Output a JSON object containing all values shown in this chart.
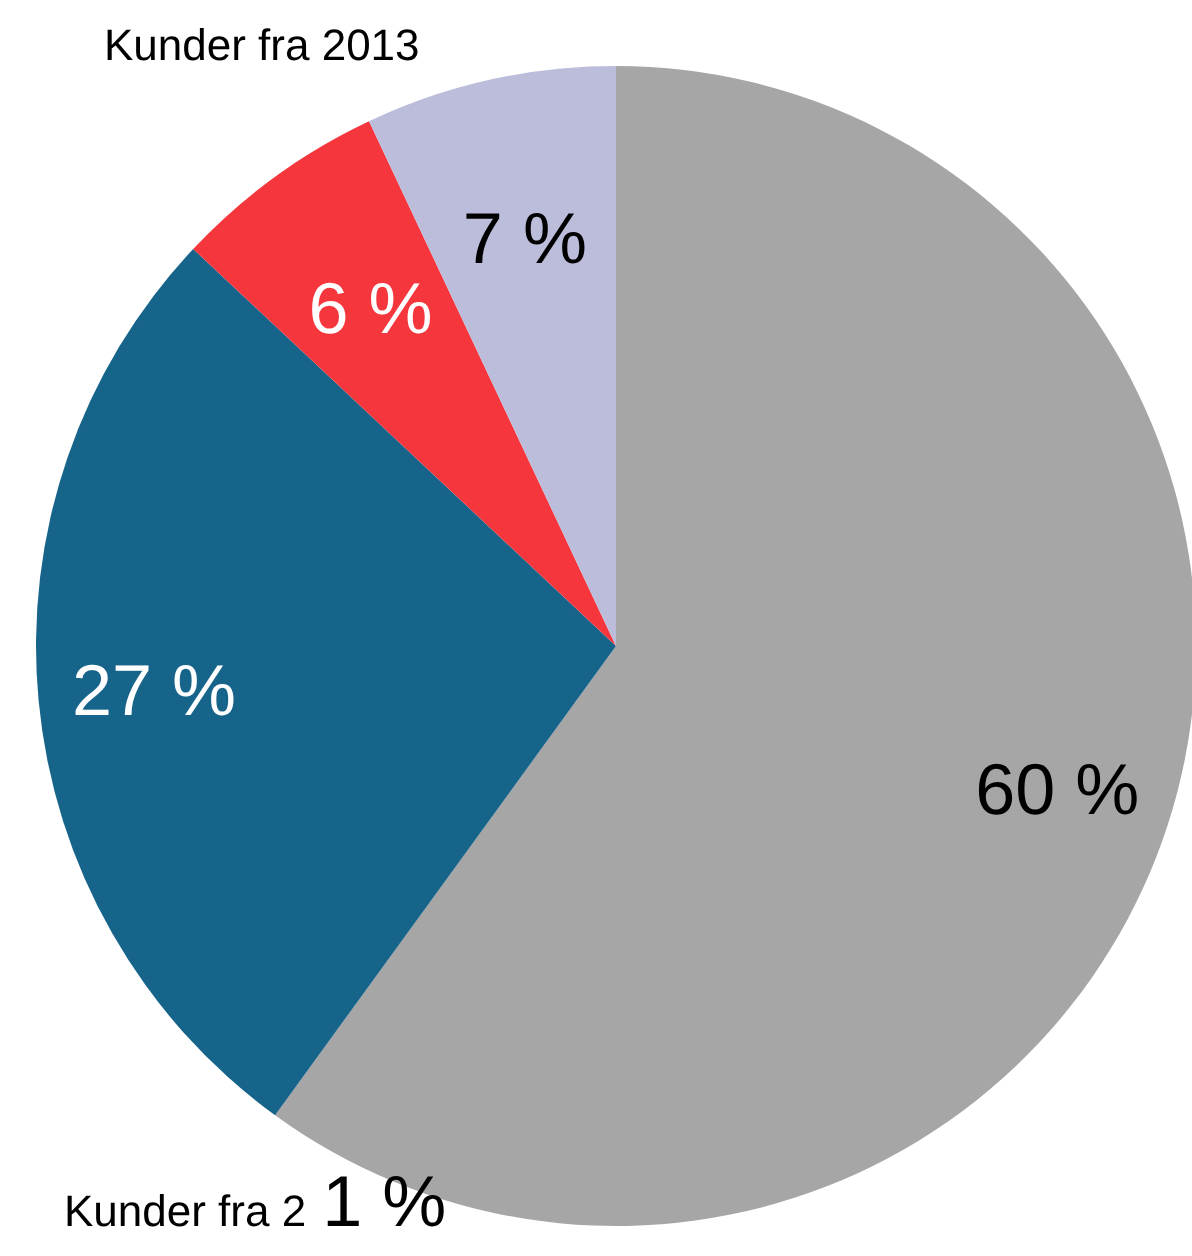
{
  "chart_data": {
    "type": "pie",
    "title": "Kunder fra 2013",
    "categories": [
      null,
      null,
      null,
      null
    ],
    "values": [
      60,
      27,
      6,
      7
    ],
    "colors": [
      "#a6a6a6",
      "#17648a",
      "#f5363c",
      "#bcbddb"
    ],
    "value_labels": [
      "60 %",
      "27 %",
      "6 %",
      "7 %"
    ],
    "annotations": [
      "Kunder fra 2",
      "1 %"
    ]
  }
}
